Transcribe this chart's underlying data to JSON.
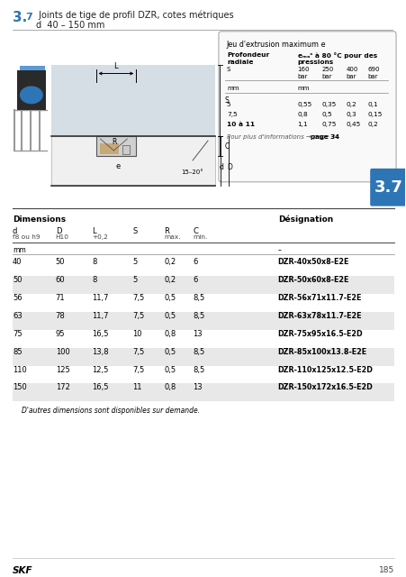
{
  "title_num": "3.7",
  "title_main": " Joints de tige de profil DZR, cotes métriques",
  "title_sub": "d  40 – 150 mm",
  "section_label": "3.7",
  "inset_title": "Jeu d'extrusion maximum e",
  "inset_col1_header1": "Profondeur",
  "inset_col1_header2": "radiale",
  "inset_col1_header3": "S",
  "inset_col2_header1": "eₘₐˣ à 80 °C pour des",
  "inset_col2_header2": "pressions",
  "inset_pressure_labels": [
    "160",
    "250",
    "400",
    "690"
  ],
  "inset_pressure_units": [
    "bar",
    "bar",
    "bar",
    "bar"
  ],
  "inset_unit_row": [
    "mm",
    "mm"
  ],
  "inset_depth_col": [
    "5",
    "7,5",
    "10 à 11"
  ],
  "inset_values": [
    [
      "0,55",
      "0,35",
      "0,2",
      "0,1"
    ],
    [
      "0,8",
      "0,5",
      "0,3",
      "0,15"
    ],
    [
      "1,1",
      "0,75",
      "0,45",
      "0,2"
    ]
  ],
  "inset_note1": "Pour plus d'informations → page 34",
  "table_header_left": "Dimensions",
  "table_header_right": "Désignation",
  "col_headers": [
    [
      "d",
      "f8 ou h9"
    ],
    [
      "D",
      "H10"
    ],
    [
      "L",
      "+0,2"
    ],
    [
      "S",
      ""
    ],
    [
      "R",
      "max."
    ],
    [
      "C",
      "min."
    ]
  ],
  "rows": [
    [
      "40",
      "50",
      "8",
      "5",
      "0,2",
      "6",
      "DZR-40x50x8-E2E"
    ],
    [
      "50",
      "60",
      "8",
      "5",
      "0,2",
      "6",
      "DZR-50x60x8-E2E"
    ],
    [
      "56",
      "71",
      "11,7",
      "7,5",
      "0,5",
      "8,5",
      "DZR-56x71x11.7-E2E"
    ],
    [
      "63",
      "78",
      "11,7",
      "7,5",
      "0,5",
      "8,5",
      "DZR-63x78x11.7-E2E"
    ],
    [
      "75",
      "95",
      "16,5",
      "10",
      "0,8",
      "13",
      "DZR-75x95x16.5-E2D"
    ],
    [
      "85",
      "100",
      "13,8",
      "7,5",
      "0,5",
      "8,5",
      "DZR-85x100x13.8-E2E"
    ],
    [
      "110",
      "125",
      "12,5",
      "7,5",
      "0,5",
      "8,5",
      "DZR-110x125x12.5-E2D"
    ],
    [
      "150",
      "172",
      "16,5",
      "11",
      "0,8",
      "13",
      "DZR-150x172x16.5-E2D"
    ]
  ],
  "note": "D'autres dimensions sont disponibles sur demande.",
  "footer": "185",
  "bg_color": "#ffffff",
  "table_stripe_color": "#e8e8e8",
  "blue_color": "#2e75b6",
  "light_blue": "#4a90c4",
  "gray_drawing": "#d0d8e0",
  "gray_dark": "#808080",
  "tan_color": "#c8a878"
}
